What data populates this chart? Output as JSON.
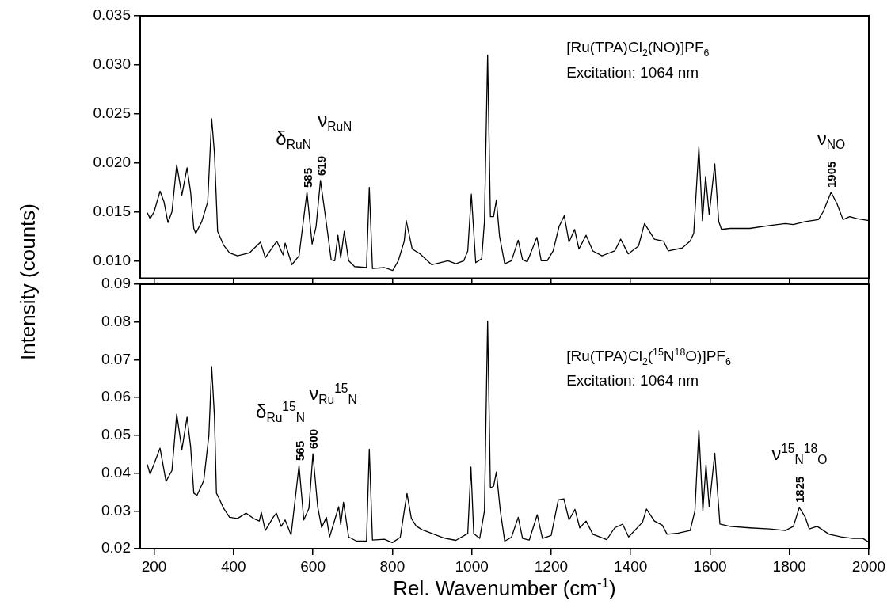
{
  "chart_data": [
    {
      "type": "line",
      "ylabel": "Intensity (counts)",
      "xlim": [
        165,
        2000
      ],
      "xticks": [
        200,
        400,
        600,
        800,
        1000,
        1200,
        1400,
        1600,
        1800,
        2000
      ],
      "ylim": [
        0.0082,
        0.035
      ],
      "yticks": [
        {
          "value": 0.01,
          "label": "0.010"
        },
        0.015,
        {
          "value": 0.02,
          "label": "0.020"
        },
        0.025,
        {
          "value": 0.03,
          "label": "0.030"
        },
        0.035
      ],
      "tick_labels": "y",
      "x": [
        183,
        190,
        200,
        215,
        225,
        235,
        245,
        257,
        270,
        283,
        292,
        300,
        305,
        320,
        335,
        345,
        352,
        360,
        375,
        390,
        410,
        440,
        468,
        480,
        509,
        525,
        530,
        547,
        565,
        585,
        598,
        608,
        619,
        635,
        646,
        655,
        663,
        670,
        679,
        690,
        705,
        735,
        742,
        750,
        780,
        801,
        815,
        830,
        835,
        850,
        870,
        899,
        920,
        940,
        960,
        980,
        990,
        999,
        1010,
        1025,
        1032,
        1040,
        1047,
        1055,
        1062,
        1070,
        1083,
        1100,
        1117,
        1128,
        1140,
        1164,
        1175,
        1190,
        1205,
        1220,
        1233,
        1245,
        1259,
        1270,
        1288,
        1305,
        1328,
        1360,
        1375,
        1394,
        1420,
        1435,
        1460,
        1483,
        1495,
        1530,
        1550,
        1559,
        1572,
        1581,
        1589,
        1598,
        1612,
        1622,
        1629,
        1650,
        1700,
        1750,
        1790,
        1810,
        1840,
        1873,
        1885,
        1905,
        1920,
        1935,
        1952,
        1970,
        1985,
        2000
      ],
      "series": [
        {
          "color": "#000000",
          "values": [
            0.0149,
            0.0143,
            0.015,
            0.0171,
            0.016,
            0.0139,
            0.015,
            0.0198,
            0.0167,
            0.0195,
            0.017,
            0.0133,
            0.0128,
            0.014,
            0.016,
            0.0245,
            0.021,
            0.013,
            0.0116,
            0.0108,
            0.0105,
            0.0108,
            0.0119,
            0.0103,
            0.012,
            0.0106,
            0.0118,
            0.0096,
            0.0105,
            0.017,
            0.0117,
            0.0135,
            0.0182,
            0.0135,
            0.0101,
            0.01,
            0.0126,
            0.0103,
            0.013,
            0.01,
            0.0094,
            0.0093,
            0.0175,
            0.0092,
            0.0093,
            0.009,
            0.01,
            0.012,
            0.0141,
            0.0112,
            0.0107,
            0.0096,
            0.0098,
            0.01,
            0.0097,
            0.01,
            0.011,
            0.0168,
            0.0098,
            0.0102,
            0.014,
            0.031,
            0.0145,
            0.0145,
            0.0162,
            0.0125,
            0.0097,
            0.01,
            0.0121,
            0.0101,
            0.0099,
            0.0124,
            0.01,
            0.01,
            0.011,
            0.0135,
            0.0146,
            0.0119,
            0.0132,
            0.0112,
            0.0126,
            0.011,
            0.0105,
            0.011,
            0.0122,
            0.0107,
            0.0115,
            0.0138,
            0.0122,
            0.012,
            0.011,
            0.0113,
            0.012,
            0.0128,
            0.0216,
            0.0141,
            0.0186,
            0.0147,
            0.0199,
            0.014,
            0.0132,
            0.0133,
            0.0133,
            0.0136,
            0.0138,
            0.0137,
            0.014,
            0.0142,
            0.015,
            0.017,
            0.0158,
            0.0142,
            0.0145,
            0.0143,
            0.0142,
            0.0141
          ]
        }
      ],
      "annotations": [
        {
          "text": "585",
          "x": 585,
          "y": 0.017
        },
        {
          "text": "δ$_{RuN}$",
          "x": 585,
          "y": 0.017
        },
        {
          "text": "619",
          "x": 619,
          "y": 0.0182
        },
        {
          "text": "ν$_{RuN}$",
          "x": 619,
          "y": 0.0182
        },
        {
          "text": "1905",
          "x": 1905,
          "y": 0.017
        },
        {
          "text": "ν$_{NO}$",
          "x": 1905,
          "y": 0.017
        },
        "[Ru(TPA)Cl$_{2}$(NO)]PF$_{6}$",
        "Excitation: 1064 nm"
      ]
    },
    {
      "type": "line",
      "xlabel": "Rel. Wavenumber (cm$^{-1}$)",
      "xlim": [
        165,
        2000
      ],
      "xticks": [
        200,
        400,
        600,
        800,
        1000,
        1200,
        1400,
        1600,
        1800,
        2000
      ],
      "ylim": [
        0.02,
        0.09
      ],
      "yticks": [
        0.02,
        0.03,
        0.04,
        0.05,
        0.06,
        0.07,
        0.08,
        0.09
      ],
      "x": [
        183,
        190,
        215,
        230,
        245,
        257,
        270,
        283,
        292,
        300,
        308,
        325,
        338,
        345,
        352,
        357,
        365,
        375,
        390,
        410,
        432,
        450,
        465,
        470,
        480,
        500,
        508,
        520,
        530,
        545,
        565,
        577,
        590,
        600,
        612,
        622,
        634,
        642,
        665,
        670,
        677,
        690,
        710,
        735,
        742,
        750,
        780,
        800,
        820,
        830,
        837,
        848,
        860,
        875,
        900,
        930,
        960,
        990,
        998,
        1005,
        1020,
        1032,
        1040,
        1047,
        1055,
        1062,
        1072,
        1083,
        1100,
        1117,
        1128,
        1145,
        1165,
        1178,
        1200,
        1218,
        1232,
        1245,
        1260,
        1272,
        1288,
        1305,
        1340,
        1360,
        1380,
        1395,
        1430,
        1440,
        1460,
        1480,
        1492,
        1520,
        1550,
        1562,
        1572,
        1582,
        1590,
        1598,
        1612,
        1625,
        1650,
        1700,
        1750,
        1790,
        1810,
        1825,
        1840,
        1850,
        1870,
        1900,
        1930,
        1960,
        1985,
        2000
      ],
      "series": [
        {
          "color": "#000000",
          "values": [
            0.0423,
            0.0397,
            0.0466,
            0.0378,
            0.0407,
            0.0556,
            0.0462,
            0.0548,
            0.047,
            0.0347,
            0.0341,
            0.038,
            0.05,
            0.0682,
            0.055,
            0.0347,
            0.033,
            0.0307,
            0.0283,
            0.028,
            0.0294,
            0.028,
            0.0273,
            0.0296,
            0.0248,
            0.0283,
            0.0294,
            0.0259,
            0.0276,
            0.0236,
            0.042,
            0.0276,
            0.0307,
            0.0451,
            0.0311,
            0.0256,
            0.0283,
            0.0231,
            0.0311,
            0.0264,
            0.0323,
            0.0231,
            0.022,
            0.022,
            0.0463,
            0.0223,
            0.0225,
            0.0216,
            0.023,
            0.03,
            0.0346,
            0.028,
            0.026,
            0.025,
            0.024,
            0.0228,
            0.0222,
            0.024,
            0.0416,
            0.024,
            0.0227,
            0.03,
            0.0802,
            0.0361,
            0.0365,
            0.0403,
            0.03,
            0.022,
            0.023,
            0.0283,
            0.0227,
            0.0223,
            0.029,
            0.0227,
            0.0235,
            0.0329,
            0.0332,
            0.0276,
            0.0304,
            0.0255,
            0.0273,
            0.0238,
            0.0224,
            0.0255,
            0.0265,
            0.0231,
            0.027,
            0.0305,
            0.0273,
            0.0262,
            0.0238,
            0.0241,
            0.0248,
            0.03,
            0.0514,
            0.03,
            0.0422,
            0.0311,
            0.0453,
            0.0265,
            0.0259,
            0.0255,
            0.0252,
            0.0248,
            0.0259,
            0.0309,
            0.0283,
            0.0252,
            0.0259,
            0.0238,
            0.0231,
            0.0227,
            0.0227,
            0.0217
          ]
        }
      ],
      "annotations": [
        {
          "text": "565",
          "x": 565,
          "y": 0.042
        },
        {
          "text": "δ$_{Ru}$$^{15}$$_{N}$",
          "x": 565,
          "y": 0.042
        },
        {
          "text": "600",
          "x": 600,
          "y": 0.0451
        },
        {
          "text": "ν$_{Ru}$$^{15}$$_{N}$",
          "x": 600,
          "y": 0.0451
        },
        {
          "text": "1825",
          "x": 1825,
          "y": 0.0309
        },
        {
          "text": "ν$^{15}$$_{N}$$^{18}$$_{O}$",
          "x": 1825,
          "y": 0.0309
        },
        "[Ru(TPA)Cl$_{2}$($^{15}$N$^{18}$O)]PF$_{6}$",
        "Excitation: 1064 nm"
      ]
    }
  ]
}
